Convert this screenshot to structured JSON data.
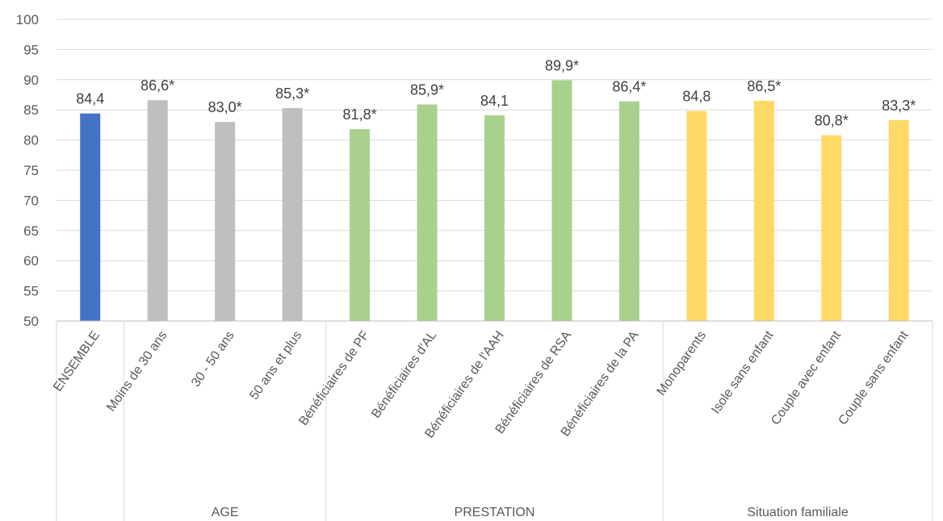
{
  "chart_data": {
    "type": "bar",
    "title": "",
    "xlabel": "",
    "ylabel": "",
    "ylim": [
      50,
      100
    ],
    "yticks": [
      50,
      55,
      60,
      65,
      70,
      75,
      80,
      85,
      90,
      95,
      100
    ],
    "grid": true,
    "legend": "none",
    "categories": [
      "ENSEMBLE",
      "Moins de 30 ans",
      "30 - 50 ans",
      "50 ans et plus",
      "Bénéficiaires de PF",
      "Bénéficiaires d'AL",
      "Bénéficiaires de l'AAH",
      "Bénéficiaires de RSA",
      "Bénéficiaires de la PA",
      "Monoparents",
      "Isole sans enfant",
      "Couple avec enfant",
      "Couple sans enfant"
    ],
    "values": [
      84.4,
      86.6,
      83.0,
      85.3,
      81.8,
      85.9,
      84.1,
      89.9,
      86.4,
      84.8,
      86.5,
      80.8,
      83.3
    ],
    "data_labels": [
      "84,4",
      "86,6*",
      "83,0*",
      "85,3*",
      "81,8*",
      "85,9*",
      "84,1",
      "89,9*",
      "86,4*",
      "84,8",
      "86,5*",
      "80,8*",
      "83,3*"
    ],
    "groups": [
      {
        "label": "",
        "start": 0,
        "end": 0
      },
      {
        "label": "AGE",
        "start": 1,
        "end": 3
      },
      {
        "label": "PRESTATION",
        "start": 4,
        "end": 8
      },
      {
        "label": "Situation familiale",
        "start": 9,
        "end": 12
      }
    ],
    "bar_colors": [
      "#4472C4",
      "#BFBFBF",
      "#BFBFBF",
      "#BFBFBF",
      "#A9D18E",
      "#A9D18E",
      "#A9D18E",
      "#A9D18E",
      "#A9D18E",
      "#FFD966",
      "#FFD966",
      "#FFD966",
      "#FFD966"
    ]
  }
}
